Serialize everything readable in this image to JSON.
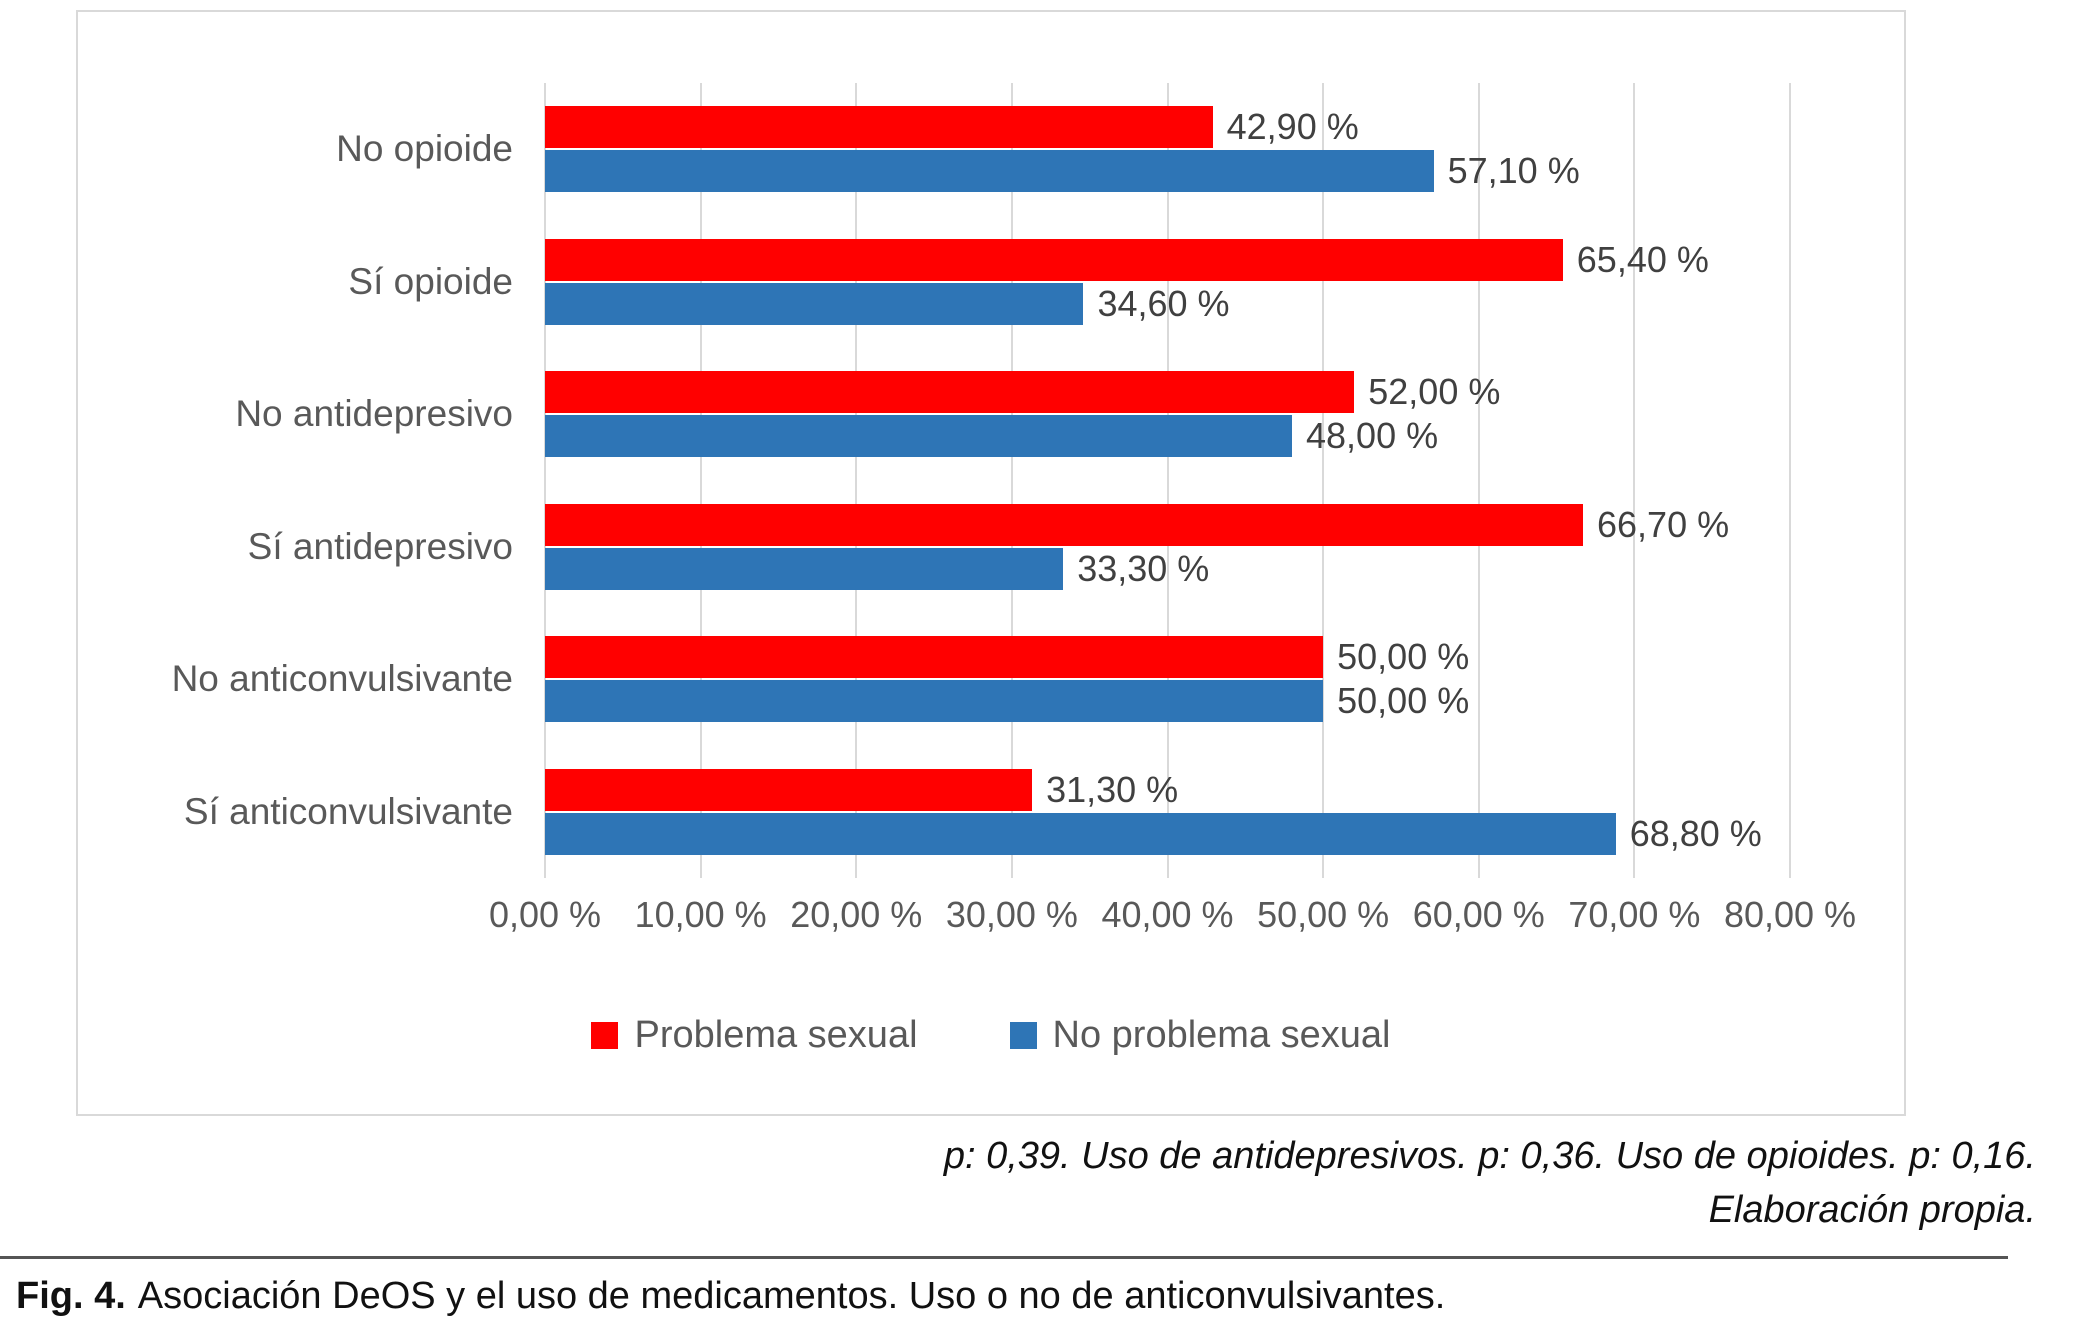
{
  "chart_data": {
    "type": "bar",
    "orientation": "horizontal",
    "categories": [
      "No opioide",
      "Sí opioide",
      "No antidepresivo",
      "Sí antidepresivo",
      "No anticonvulsivante",
      "Sí anticonvulsivante"
    ],
    "series": [
      {
        "name": "Problema sexual",
        "color": "#FF0000",
        "values": [
          42.9,
          65.4,
          52.0,
          66.7,
          50.0,
          31.3
        ],
        "labels": [
          "42,90 %",
          "65,40 %",
          "52,00 %",
          "66,70 %",
          "50,00 %",
          "31,30 %"
        ]
      },
      {
        "name": "No problema sexual",
        "color": "#2E75B6",
        "values": [
          57.1,
          34.6,
          48.0,
          33.3,
          50.0,
          68.8
        ],
        "labels": [
          "57,10 %",
          "34,60 %",
          "48,00 %",
          "33,30 %",
          "50,00 %",
          "68,80 %"
        ]
      }
    ],
    "x_axis": {
      "min": 0,
      "max": 80,
      "tick_step": 10,
      "tick_labels": [
        "0,00 %",
        "10,00 %",
        "20,00 %",
        "30,00 %",
        "40,00 %",
        "50,00 %",
        "60,00 %",
        "70,00 %",
        "80,00 %"
      ]
    },
    "legend": [
      {
        "label": "Problema sexual",
        "color": "#FF0000"
      },
      {
        "label": "No problema sexual",
        "color": "#2E75B6"
      }
    ],
    "grid": true,
    "gridline_color": "#D9D9D9",
    "legend_position": "bottom"
  },
  "footnote": {
    "line1": "p: 0,39. Uso de antidepresivos. p: 0,36. Uso de opioides. p: 0,16.",
    "line2": "Elaboración propia."
  },
  "caption": {
    "prefix": "Fig. 4.",
    "text": "Asociación DeOS y el uso de medicamentos. Uso o no de anticonvulsivantes."
  }
}
